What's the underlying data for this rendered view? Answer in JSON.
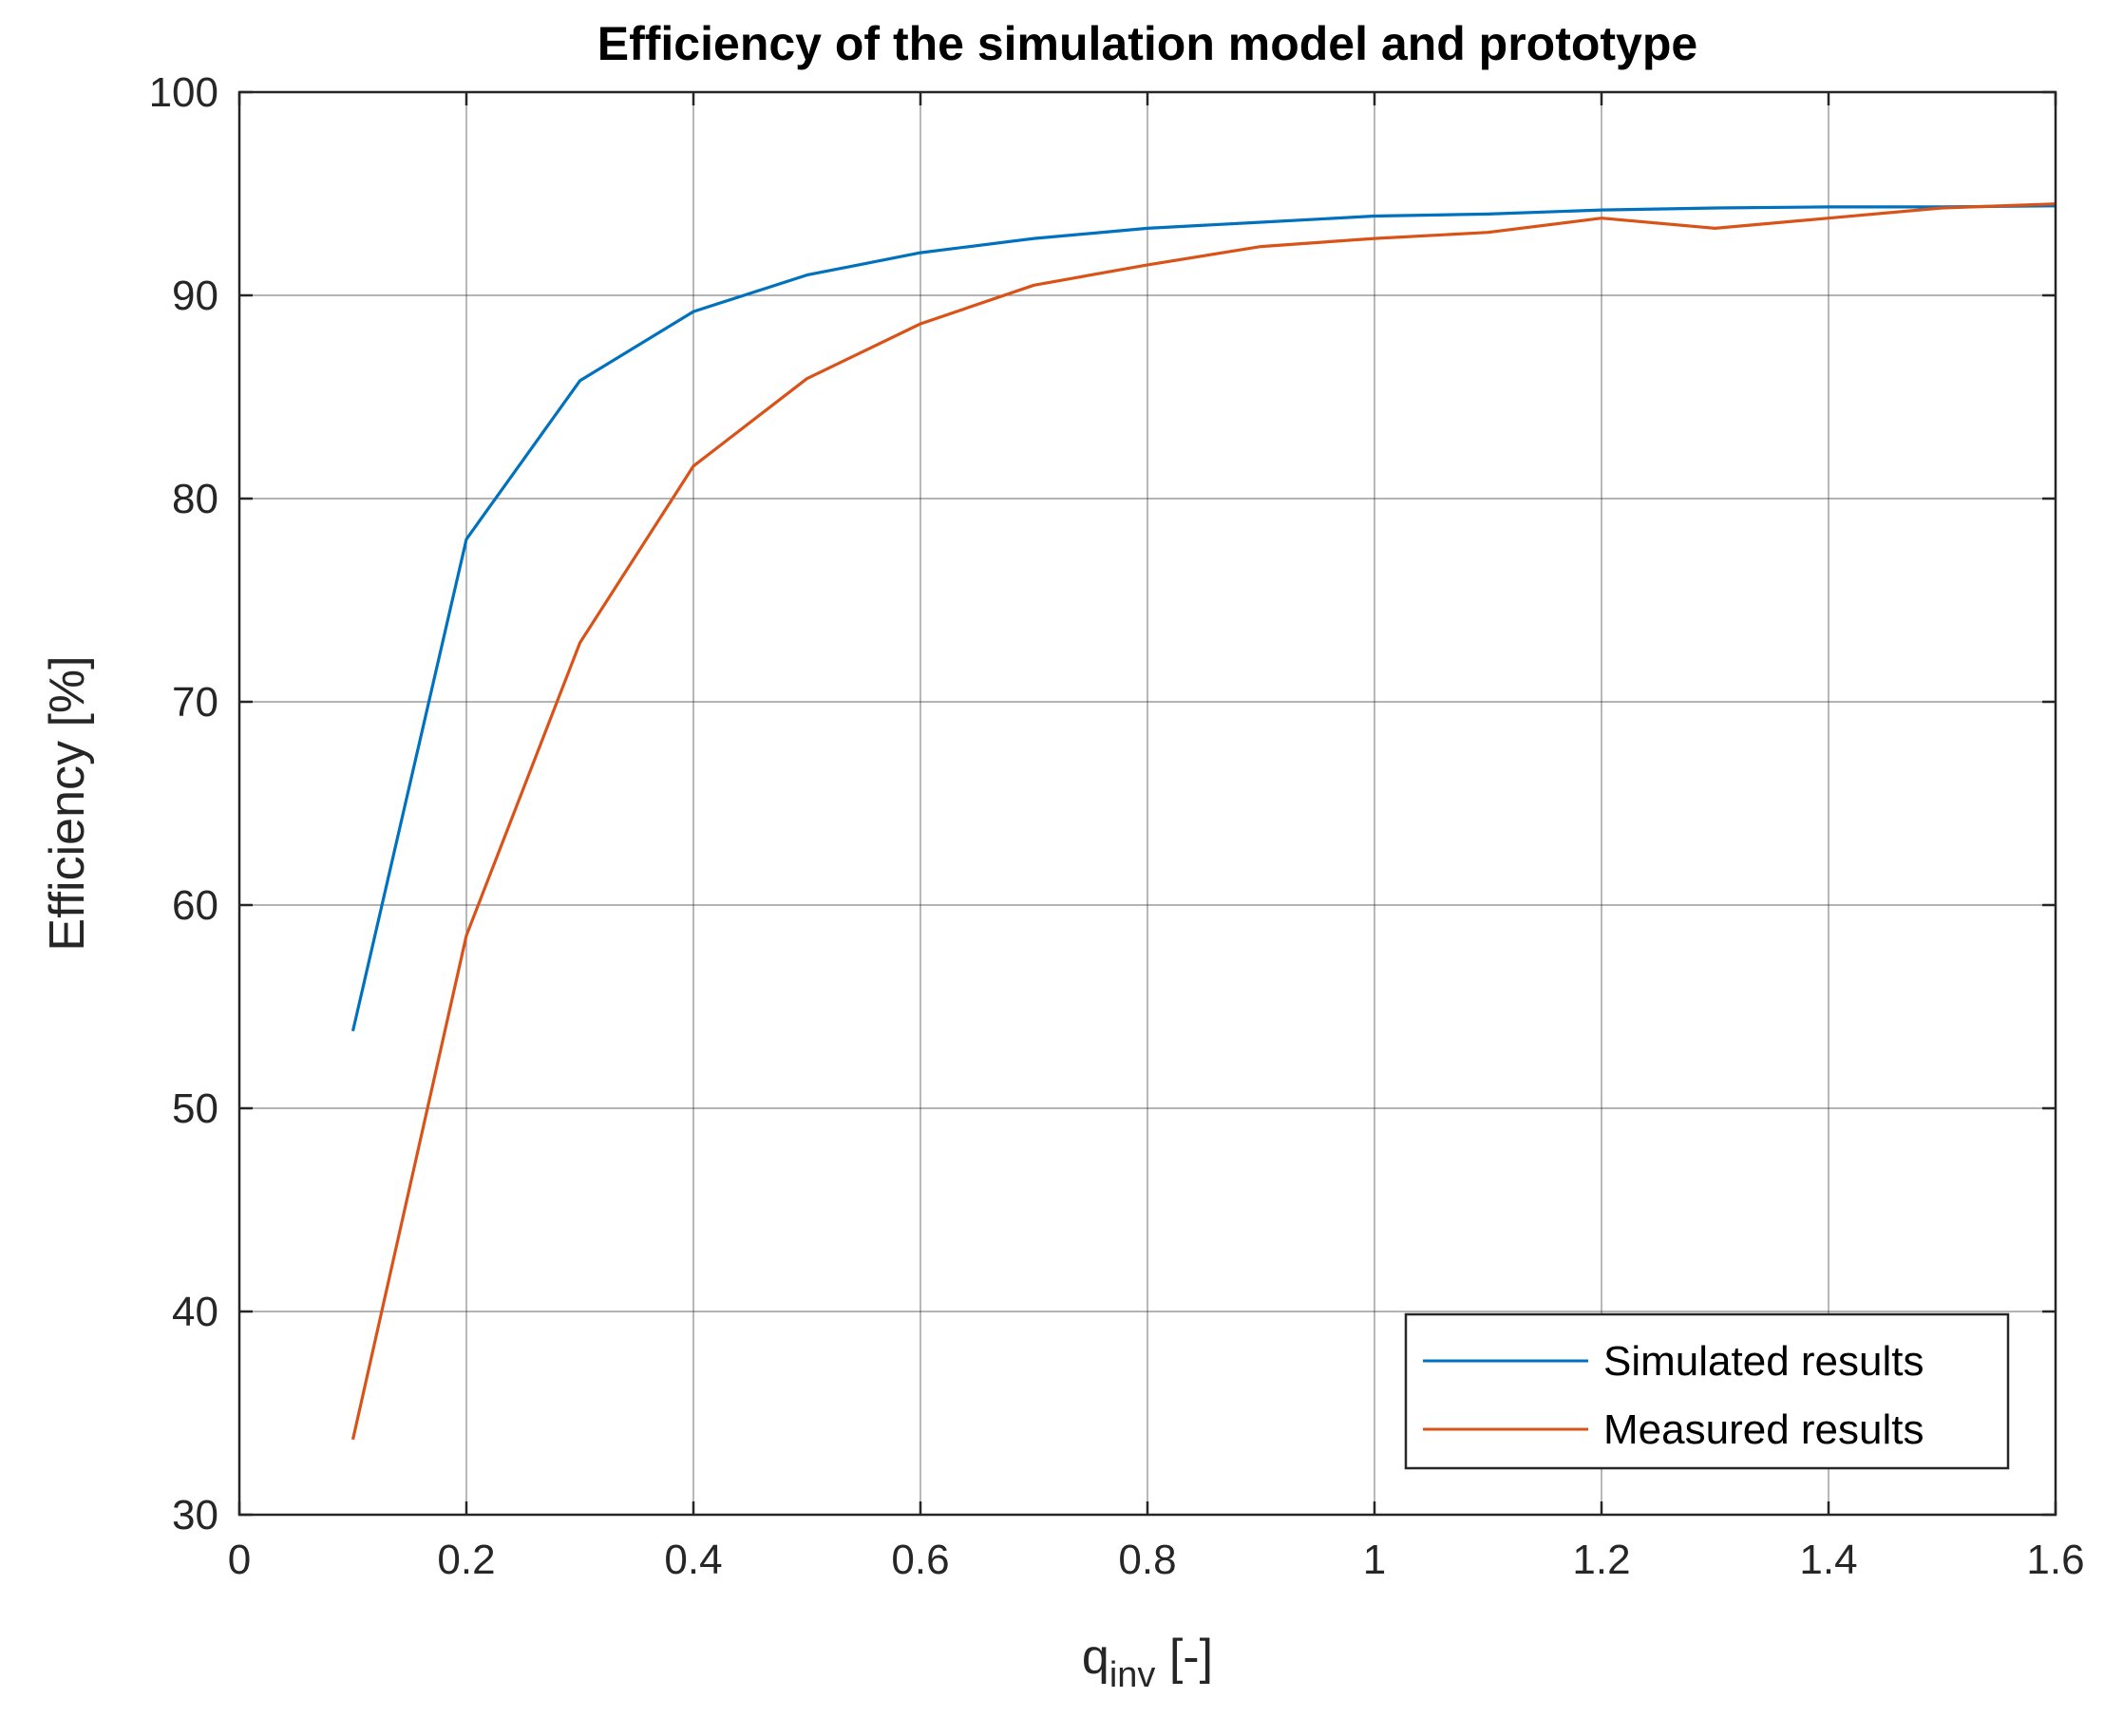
{
  "chart_data": {
    "type": "line",
    "title": "Efficiency of the simulation model and prototype",
    "xlabel": {
      "main": "q",
      "subscript": "inv",
      "suffix": " [-]"
    },
    "ylabel": "Efficiency [%]",
    "xlim": [
      0,
      1.6
    ],
    "ylim": [
      30,
      100
    ],
    "xticks": [
      0,
      0.2,
      0.4,
      0.6,
      0.8,
      1,
      1.2,
      1.4,
      1.6
    ],
    "xtick_labels": [
      "0",
      "0.2",
      "0.4",
      "0.6",
      "0.8",
      "1",
      "1.2",
      "1.4",
      "1.6"
    ],
    "yticks": [
      30,
      40,
      50,
      60,
      70,
      80,
      90,
      100
    ],
    "ytick_labels": [
      "30",
      "40",
      "50",
      "60",
      "70",
      "80",
      "90",
      "100"
    ],
    "grid": true,
    "legend_position": "bottom-right",
    "x": [
      0.1,
      0.2,
      0.3,
      0.4,
      0.5,
      0.6,
      0.7,
      0.8,
      0.9,
      1.0,
      1.1,
      1.2,
      1.3,
      1.4,
      1.5,
      1.6
    ],
    "series": [
      {
        "name": "Simulated results",
        "color": "#0072BD",
        "values": [
          53.8,
          78.0,
          85.8,
          89.2,
          91.0,
          92.1,
          92.8,
          93.3,
          93.6,
          93.9,
          94.0,
          94.2,
          94.3,
          94.35,
          94.35,
          94.4
        ]
      },
      {
        "name": "Measured results",
        "color": "#D95319",
        "values": [
          33.7,
          58.5,
          72.9,
          81.6,
          85.9,
          88.6,
          90.5,
          91.5,
          92.4,
          92.8,
          93.1,
          93.8,
          93.3,
          93.8,
          94.3,
          94.5
        ]
      }
    ]
  }
}
